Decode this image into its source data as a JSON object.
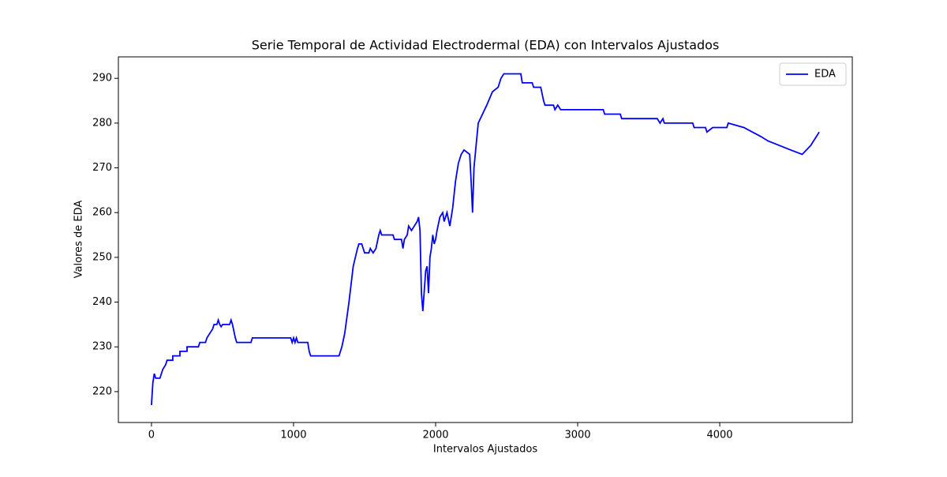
{
  "chart_data": {
    "type": "line",
    "title": "Serie Temporal de Actividad Electrodermal (EDA) con Intervalos Ajustados",
    "x_label": "Intervalos Ajustados",
    "y_label": "Valores de EDA",
    "xlim": [
      -233,
      4933
    ],
    "ylim": [
      213.1,
      294.8
    ],
    "xticks": [
      0,
      1000,
      2000,
      3000,
      4000
    ],
    "yticks": [
      220,
      230,
      240,
      250,
      260,
      270,
      280,
      290
    ],
    "legend": "upper right",
    "x": [
      0,
      10,
      20,
      30,
      60,
      80,
      100,
      110,
      150,
      150,
      200,
      200,
      250,
      250,
      330,
      340,
      380,
      390,
      410,
      430,
      440,
      460,
      470,
      480,
      490,
      500,
      550,
      560,
      570,
      590,
      600,
      700,
      710,
      980,
      990,
      1000,
      1010,
      1020,
      1030,
      1100,
      1110,
      1120,
      1320,
      1340,
      1360,
      1390,
      1420,
      1450,
      1460,
      1480,
      1490,
      1500,
      1530,
      1540,
      1560,
      1580,
      1600,
      1610,
      1620,
      1700,
      1710,
      1760,
      1770,
      1780,
      1800,
      1810,
      1830,
      1850,
      1870,
      1880,
      1890,
      1900,
      1910,
      1930,
      1940,
      1950,
      1960,
      1970,
      1980,
      1990,
      2000,
      2010,
      2030,
      2050,
      2060,
      2080,
      2100,
      2120,
      2140,
      2160,
      2180,
      2200,
      2240,
      2250,
      2260,
      2270,
      2300,
      2330,
      2360,
      2400,
      2440,
      2460,
      2480,
      2600,
      2610,
      2680,
      2690,
      2740,
      2760,
      2770,
      2830,
      2840,
      2860,
      2880,
      3180,
      3190,
      3300,
      3310,
      3560,
      3580,
      3600,
      3610,
      3810,
      3820,
      3900,
      3910,
      3950,
      4050,
      4060,
      4170,
      4230,
      4290,
      4340,
      4420,
      4500,
      4580,
      4610,
      4640,
      4660,
      4680,
      4700
    ],
    "series": [
      {
        "name": "EDA",
        "color": "#0000ff",
        "values": [
          217,
          222,
          224,
          223,
          223,
          225,
          226,
          227,
          227,
          228,
          228,
          229,
          229,
          230,
          230,
          231,
          231,
          232,
          233,
          234,
          235,
          235,
          236,
          235,
          234.5,
          235,
          235,
          236,
          235,
          232,
          231,
          231,
          232,
          232,
          231,
          232,
          231,
          232,
          231,
          231,
          229,
          228,
          228,
          230,
          233,
          240,
          248,
          252,
          253,
          253,
          252,
          251,
          251,
          252,
          251,
          252,
          255,
          256,
          255,
          255,
          254,
          254,
          252,
          254,
          255,
          257,
          256,
          257,
          258,
          259,
          256,
          242,
          238,
          247,
          248,
          242,
          250,
          252,
          255,
          253,
          254,
          256,
          259,
          260,
          258,
          260,
          257,
          261,
          267,
          271,
          273,
          274,
          273,
          267,
          260,
          270,
          280,
          282,
          284,
          287,
          288,
          290,
          291,
          291,
          289,
          289,
          288,
          288,
          285,
          284,
          284,
          283,
          284,
          283,
          283,
          282,
          282,
          281,
          281,
          280,
          281,
          280,
          280,
          279,
          279,
          278,
          279,
          279,
          280,
          279,
          278,
          277,
          276,
          275,
          274,
          273,
          274,
          275,
          276,
          277,
          278
        ]
      }
    ]
  }
}
